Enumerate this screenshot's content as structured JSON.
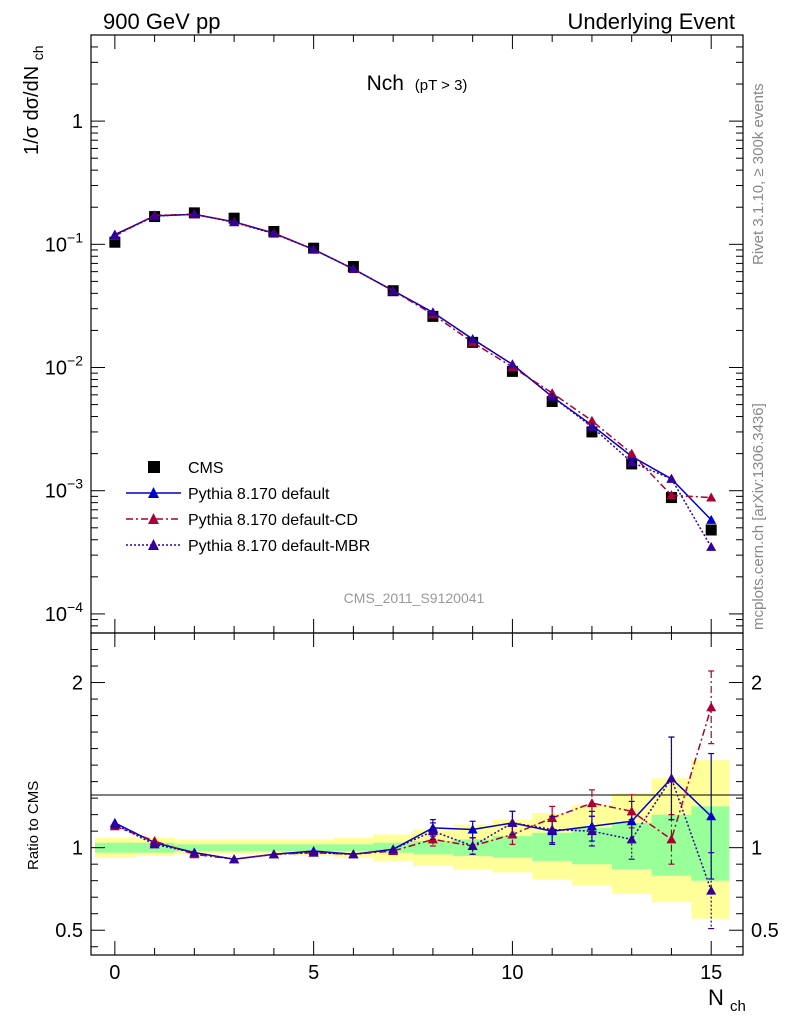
{
  "header": {
    "left_label": "900 GeV pp",
    "right_label": "Underlying Event"
  },
  "side_labels": {
    "rivet": "Rivet 3.1.10, ≥ 300k events",
    "mcplots": "mcplots.cern.ch [arXiv:1306.3436]"
  },
  "watermark": "CMS_2011_S9120041",
  "chart_data": [
    {
      "type": "line",
      "panel": "main",
      "title": "Nch",
      "title_cut": "(pT >  3)",
      "ylabel": "1/σ dσ/dN",
      "ylabel_sub": "ch",
      "yscale": "log",
      "xlim": [
        -0.6,
        15.8
      ],
      "ylim": [
        7e-05,
        5
      ],
      "ytick_labels": [
        {
          "value": 1,
          "base": "1",
          "exp": ""
        },
        {
          "value": 0.1,
          "base": "10",
          "exp": "−1"
        },
        {
          "value": 0.01,
          "base": "10",
          "exp": "−2"
        },
        {
          "value": 0.001,
          "base": "10",
          "exp": "−3"
        },
        {
          "value": 0.0001,
          "base": "10",
          "exp": "−4"
        }
      ],
      "x": [
        0,
        1,
        2,
        3,
        4,
        5,
        6,
        7,
        8,
        9,
        10,
        11,
        12,
        13,
        14,
        15
      ],
      "series": [
        {
          "name": "CMS",
          "style": "data",
          "color": "#000000",
          "values": [
            0.104,
            0.168,
            0.18,
            0.163,
            0.127,
            0.093,
            0.066,
            0.042,
            0.026,
            0.016,
            0.0093,
            0.0053,
            0.003,
            0.00165,
            0.00088,
            0.00048
          ]
        },
        {
          "name": "Pythia 8.170 default",
          "style": "solid",
          "color": "#0000cc",
          "values": [
            0.12,
            0.17,
            0.175,
            0.152,
            0.123,
            0.091,
            0.063,
            0.042,
            0.028,
            0.017,
            0.0106,
            0.0058,
            0.0034,
            0.0019,
            0.00125,
            0.00058
          ]
        },
        {
          "name": "Pythia 8.170 default-CD",
          "style": "dashdot",
          "color": "#aa0033",
          "values": [
            0.117,
            0.172,
            0.175,
            0.152,
            0.123,
            0.091,
            0.063,
            0.042,
            0.027,
            0.016,
            0.0101,
            0.0062,
            0.0037,
            0.002,
            0.00092,
            0.00088
          ]
        },
        {
          "name": "Pythia 8.170 default-MBR",
          "style": "dotted",
          "color": "#330099",
          "values": [
            0.119,
            0.169,
            0.176,
            0.151,
            0.122,
            0.091,
            0.063,
            0.042,
            0.028,
            0.017,
            0.0106,
            0.0058,
            0.0033,
            0.0017,
            0.00125,
            0.00035
          ]
        }
      ],
      "legend_position": "lower-left"
    },
    {
      "type": "line",
      "panel": "ratio",
      "ylabel": "Ratio to CMS",
      "xlabel": "N",
      "xlabel_sub": "ch",
      "xlim": [
        -0.6,
        15.8
      ],
      "ylim": [
        0.35,
        2.3
      ],
      "xticks": [
        0,
        5,
        10,
        15
      ],
      "yticks": [
        0.5,
        1,
        2
      ],
      "x": [
        0,
        1,
        2,
        3,
        4,
        5,
        6,
        7,
        8,
        9,
        10,
        11,
        12,
        13,
        14,
        15
      ],
      "bands": {
        "green_stat": {
          "lo": [
            0.97,
            0.97,
            0.98,
            0.98,
            0.98,
            0.98,
            0.98,
            0.97,
            0.96,
            0.95,
            0.94,
            0.92,
            0.9,
            0.87,
            0.83,
            0.8
          ],
          "hi": [
            1.03,
            1.03,
            1.02,
            1.02,
            1.02,
            1.02,
            1.02,
            1.03,
            1.04,
            1.05,
            1.07,
            1.09,
            1.12,
            1.15,
            1.2,
            1.25
          ]
        },
        "yellow_total": {
          "lo": [
            0.94,
            0.95,
            0.96,
            0.96,
            0.96,
            0.95,
            0.94,
            0.92,
            0.89,
            0.87,
            0.85,
            0.81,
            0.77,
            0.72,
            0.67,
            0.57
          ],
          "hi": [
            1.06,
            1.06,
            1.05,
            1.05,
            1.05,
            1.05,
            1.06,
            1.08,
            1.11,
            1.14,
            1.17,
            1.21,
            1.26,
            1.33,
            1.42,
            1.53
          ]
        }
      },
      "series": [
        {
          "name": "Pythia 8.170 default",
          "color": "#0000cc",
          "style": "solid",
          "values": [
            1.15,
            1.03,
            0.97,
            0.93,
            0.96,
            0.98,
            0.96,
            0.99,
            1.12,
            1.11,
            1.15,
            1.1,
            1.13,
            1.16,
            1.42,
            1.19
          ],
          "errors": [
            0.02,
            0.02,
            0.02,
            0.02,
            0.02,
            0.02,
            0.02,
            0.03,
            0.05,
            0.05,
            0.07,
            0.08,
            0.09,
            0.12,
            0.25,
            0.38
          ]
        },
        {
          "name": "Pythia 8.170 default-CD",
          "color": "#aa0033",
          "style": "dashdot",
          "values": [
            1.13,
            1.04,
            0.96,
            0.93,
            0.96,
            0.97,
            0.96,
            0.98,
            1.05,
            1.01,
            1.08,
            1.18,
            1.27,
            1.22,
            1.05,
            1.85
          ],
          "errors": [
            0.02,
            0.02,
            0.02,
            0.02,
            0.02,
            0.02,
            0.02,
            0.03,
            0.04,
            0.05,
            0.06,
            0.07,
            0.08,
            0.1,
            0.15,
            0.22
          ]
        },
        {
          "name": "Pythia 8.170 default-MBR",
          "color": "#330099",
          "style": "dotted",
          "values": [
            1.14,
            1.02,
            0.97,
            0.93,
            0.96,
            0.97,
            0.96,
            0.99,
            1.1,
            1.01,
            1.15,
            1.11,
            1.1,
            1.05,
            1.42,
            0.74
          ],
          "errors": [
            0.02,
            0.02,
            0.02,
            0.02,
            0.02,
            0.02,
            0.02,
            0.03,
            0.05,
            0.05,
            0.07,
            0.08,
            0.09,
            0.12,
            0.25,
            0.23
          ]
        }
      ]
    }
  ]
}
